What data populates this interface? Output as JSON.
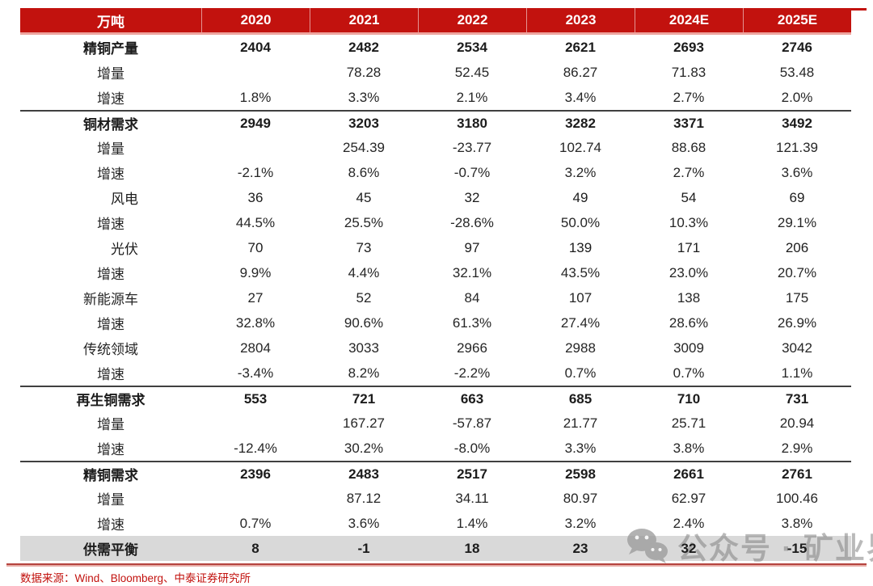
{
  "colors": {
    "header_bg": "#c2120e",
    "header_text": "#ffffff",
    "balance_row_bg": "#d9d9d9",
    "divider": "#404040",
    "bottom_rule": "#b5433e",
    "source_text": "#c2120e",
    "watermark_gray": "#828282"
  },
  "table": {
    "unit_header": "万吨",
    "columns": [
      "2020",
      "2021",
      "2022",
      "2023",
      "2024E",
      "2025E"
    ],
    "rows": [
      {
        "label": "精铜产量",
        "style": "section",
        "values": [
          "2404",
          "2482",
          "2534",
          "2621",
          "2693",
          "2746"
        ]
      },
      {
        "label": "增量",
        "style": "sub",
        "values": [
          "",
          "78.28",
          "52.45",
          "86.27",
          "71.83",
          "53.48"
        ]
      },
      {
        "label": "增速",
        "style": "sub",
        "values": [
          "1.8%",
          "3.3%",
          "2.1%",
          "3.4%",
          "2.7%",
          "2.0%"
        ],
        "divider_after": true
      },
      {
        "label": "铜材需求",
        "style": "section",
        "values": [
          "2949",
          "3203",
          "3180",
          "3282",
          "3371",
          "3492"
        ]
      },
      {
        "label": "增量",
        "style": "sub",
        "values": [
          "",
          "254.39",
          "-23.77",
          "102.74",
          "88.68",
          "121.39"
        ]
      },
      {
        "label": "增速",
        "style": "sub",
        "values": [
          "-2.1%",
          "8.6%",
          "-0.7%",
          "3.2%",
          "2.7%",
          "3.6%"
        ]
      },
      {
        "label": "风电",
        "style": "sub2",
        "values": [
          "36",
          "45",
          "32",
          "49",
          "54",
          "69"
        ]
      },
      {
        "label": "增速",
        "style": "sub",
        "values": [
          "44.5%",
          "25.5%",
          "-28.6%",
          "50.0%",
          "10.3%",
          "29.1%"
        ]
      },
      {
        "label": "光伏",
        "style": "sub2",
        "values": [
          "70",
          "73",
          "97",
          "139",
          "171",
          "206"
        ]
      },
      {
        "label": "增速",
        "style": "sub",
        "values": [
          "9.9%",
          "4.4%",
          "32.1%",
          "43.5%",
          "23.0%",
          "20.7%"
        ]
      },
      {
        "label": "新能源车",
        "style": "sub",
        "values": [
          "27",
          "52",
          "84",
          "107",
          "138",
          "175"
        ]
      },
      {
        "label": "增速",
        "style": "sub",
        "values": [
          "32.8%",
          "90.6%",
          "61.3%",
          "27.4%",
          "28.6%",
          "26.9%"
        ]
      },
      {
        "label": "传统领域",
        "style": "sub",
        "values": [
          "2804",
          "3033",
          "2966",
          "2988",
          "3009",
          "3042"
        ]
      },
      {
        "label": "增速",
        "style": "sub",
        "values": [
          "-3.4%",
          "8.2%",
          "-2.2%",
          "0.7%",
          "0.7%",
          "1.1%"
        ],
        "divider_after": true
      },
      {
        "label": "再生铜需求",
        "style": "section",
        "values": [
          "553",
          "721",
          "663",
          "685",
          "710",
          "731"
        ]
      },
      {
        "label": "增量",
        "style": "sub",
        "values": [
          "",
          "167.27",
          "-57.87",
          "21.77",
          "25.71",
          "20.94"
        ]
      },
      {
        "label": "增速",
        "style": "sub",
        "values": [
          "-12.4%",
          "30.2%",
          "-8.0%",
          "3.3%",
          "3.8%",
          "2.9%"
        ],
        "divider_after": true
      },
      {
        "label": "精铜需求",
        "style": "section",
        "values": [
          "2396",
          "2483",
          "2517",
          "2598",
          "2661",
          "2761"
        ]
      },
      {
        "label": "增量",
        "style": "sub",
        "values": [
          "",
          "87.12",
          "34.11",
          "80.97",
          "62.97",
          "100.46"
        ]
      },
      {
        "label": "增速",
        "style": "sub",
        "values": [
          "0.7%",
          "3.6%",
          "1.4%",
          "3.2%",
          "2.4%",
          "3.8%"
        ]
      },
      {
        "label": "供需平衡",
        "style": "balance",
        "values": [
          "8",
          "-1",
          "18",
          "23",
          "32",
          "-15"
        ]
      }
    ]
  },
  "footer": {
    "source_text": "数据来源：Wind、Bloomberg、中泰证券研究所"
  },
  "watermark": {
    "icon": "wechat-icon",
    "text": "公众号 · 矿业界"
  }
}
